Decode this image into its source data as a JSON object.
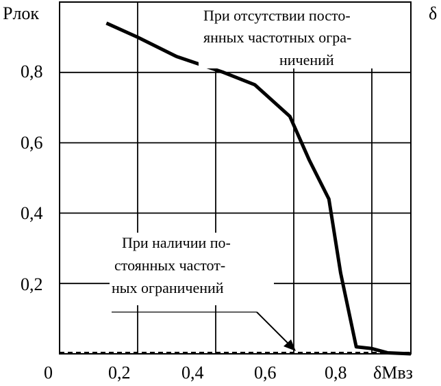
{
  "chart_data": {
    "type": "line",
    "title": "",
    "ylabel": "Pлок",
    "xlabel": "δMвз",
    "xlim": [
      0,
      0.9
    ],
    "ylim": [
      0,
      1.0
    ],
    "grid": true,
    "x_ticks": [
      "0",
      "0,2",
      "0,4",
      "0,6",
      "0,8"
    ],
    "y_ticks": [
      "0,2",
      "0,4",
      "0,6",
      "0,8"
    ],
    "series": [
      {
        "name": "",
        "style": "solid",
        "color": "#000000",
        "points": [
          [
            0.12,
            0.94
          ],
          [
            0.2,
            0.9
          ],
          [
            0.3,
            0.845
          ],
          [
            0.42,
            0.8
          ],
          [
            0.5,
            0.765
          ],
          [
            0.59,
            0.675
          ],
          [
            0.64,
            0.55
          ],
          [
            0.69,
            0.44
          ],
          [
            0.72,
            0.23
          ],
          [
            0.76,
            0.02
          ],
          [
            0.8,
            0.015
          ],
          [
            0.84,
            0.003
          ],
          [
            0.9,
            0.0
          ]
        ]
      },
      {
        "name": "",
        "style": "dashed",
        "color": "#000000",
        "points": [
          [
            0.0,
            0.003
          ],
          [
            0.9,
            0.003
          ]
        ]
      }
    ],
    "annotations": [
      {
        "id": "top",
        "lines": [
          "При отсутствии посто-",
          "янных частотных огра-",
          "ничений"
        ]
      },
      {
        "id": "bottom",
        "lines": [
          "При наличии по-",
          "стоянных частот-",
          "ных ограничений"
        ]
      }
    ],
    "extra_text": "δ"
  }
}
